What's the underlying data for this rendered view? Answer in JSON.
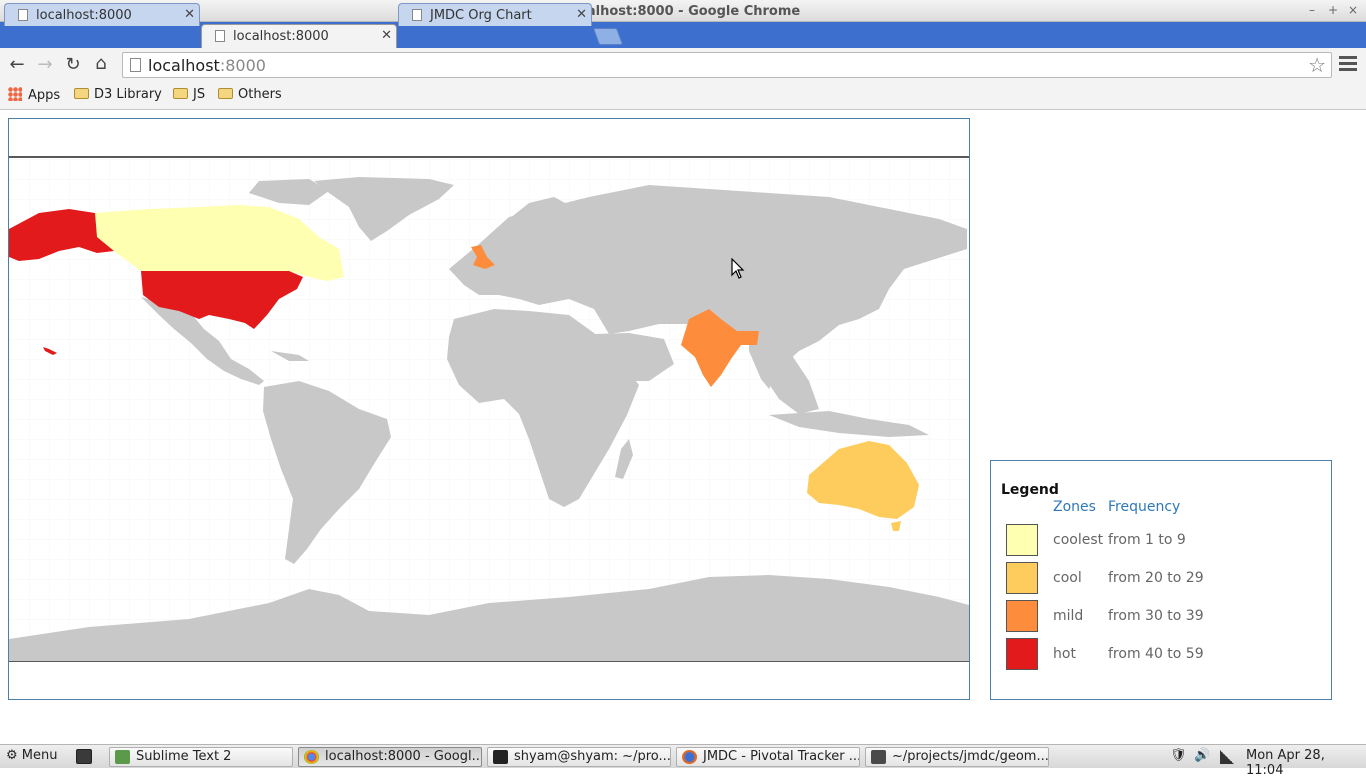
{
  "window": {
    "title": "localhost:8000 - Google Chrome"
  },
  "tabs": [
    {
      "label": "localhost:8000",
      "active": false
    },
    {
      "label": "localhost:8000",
      "active": true
    },
    {
      "label": "JMDC Org Chart",
      "active": false
    }
  ],
  "omnibox": {
    "host": "localhost",
    "port": ":8000"
  },
  "bookmarks": {
    "apps": "Apps",
    "items": [
      "D3 Library",
      "JS",
      "Others"
    ]
  },
  "legend": {
    "title": "Legend",
    "zones_header": "Zones",
    "frequency_header": "Frequency",
    "rows": [
      {
        "zone": "coolest",
        "frequency": "from 1 to 9",
        "color": "#ffffb2"
      },
      {
        "zone": "cool",
        "frequency": "from 20 to 29",
        "color": "#fecc5c"
      },
      {
        "zone": "mild",
        "frequency": "from 30 to 39",
        "color": "#fd8d3c"
      },
      {
        "zone": "hot",
        "frequency": "from 40 to 59",
        "color": "#e31a1c"
      }
    ]
  },
  "map": {
    "land_color": "#c8c8c8",
    "highlighted_countries": [
      {
        "country": "United States",
        "zone": "hot"
      },
      {
        "country": "Alaska",
        "zone": "hot"
      },
      {
        "country": "Canada",
        "zone": "coolest"
      },
      {
        "country": "United Kingdom",
        "zone": "mild"
      },
      {
        "country": "India",
        "zone": "mild"
      },
      {
        "country": "Australia",
        "zone": "cool"
      }
    ]
  },
  "taskbar": {
    "menu": "Menu",
    "items": [
      {
        "label": "Sublime Text 2",
        "active": false
      },
      {
        "label": "localhost:8000 - Googl...",
        "active": true
      },
      {
        "label": "shyam@shyam: ~/pro...",
        "active": false
      },
      {
        "label": "JMDC - Pivotal Tracker ...",
        "active": false
      },
      {
        "label": "~/projects/jmdc/geom...",
        "active": false
      }
    ],
    "clock": "Mon Apr 28, 11:04"
  }
}
